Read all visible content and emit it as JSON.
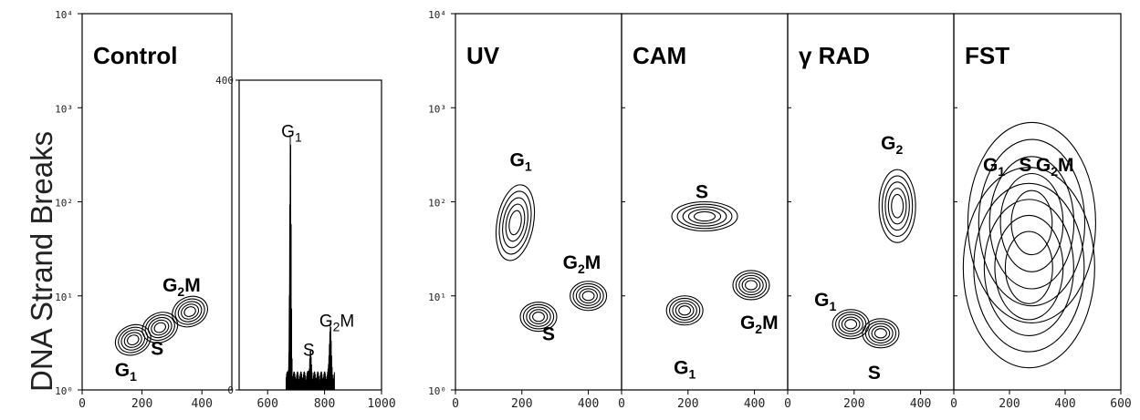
{
  "y_axis_title": "DNA Strand Breaks",
  "colors": {
    "ink": "#000000",
    "axis": "#222222"
  },
  "chart_data": [
    {
      "type": "scatter",
      "panel": "Control",
      "style": "contour",
      "title": "Control",
      "xlim": [
        0,
        500
      ],
      "ylim": [
        1,
        10000
      ],
      "yscale": "log",
      "x_ticks": [
        "0",
        "200",
        "400"
      ],
      "y_ticks": [
        "10⁰",
        "10¹",
        "10²",
        "10³",
        "10⁴"
      ],
      "populations": [
        {
          "name": "G1",
          "x": 170,
          "y": 3.4
        },
        {
          "name": "S",
          "x": 260,
          "y": 4.6
        },
        {
          "name": "G2M",
          "x": 360,
          "y": 6.8
        }
      ]
    },
    {
      "type": "bar",
      "panel": "DNA content histogram",
      "title": "",
      "xlim": [
        500,
        1000
      ],
      "ylim": [
        0,
        400
      ],
      "x_ticks": [
        "600",
        "800",
        "1000"
      ],
      "y_ticks": [
        "0",
        "400"
      ],
      "peaks": [
        {
          "name": "G1",
          "x": 680,
          "y": 315
        },
        {
          "name": "S",
          "x": 750,
          "y": 30
        },
        {
          "name": "G2M",
          "x": 820,
          "y": 70
        }
      ]
    },
    {
      "type": "scatter",
      "panel": "UV",
      "style": "contour",
      "title": "UV",
      "xlim": [
        0,
        500
      ],
      "ylim": [
        1,
        10000
      ],
      "yscale": "log",
      "x_ticks": [
        "0",
        "200",
        "400"
      ],
      "y_ticks": [
        "10⁰",
        "10¹",
        "10²",
        "10³",
        "10⁴"
      ],
      "populations": [
        {
          "name": "G1",
          "x": 180,
          "y": 60
        },
        {
          "name": "S",
          "x": 250,
          "y": 6
        },
        {
          "name": "G2M",
          "x": 400,
          "y": 10
        }
      ]
    },
    {
      "type": "scatter",
      "panel": "CAM",
      "style": "contour",
      "title": "CAM",
      "xlim": [
        0,
        500
      ],
      "ylim": [
        1,
        10000
      ],
      "yscale": "log",
      "x_ticks": [
        "0",
        "200",
        "400"
      ],
      "populations": [
        {
          "name": "S",
          "x": 250,
          "y": 70
        },
        {
          "name": "G1",
          "x": 190,
          "y": 7
        },
        {
          "name": "G2M",
          "x": 390,
          "y": 13
        }
      ]
    },
    {
      "type": "scatter",
      "panel": "γ RAD",
      "style": "contour",
      "title": "γ RAD",
      "xlim": [
        0,
        500
      ],
      "ylim": [
        1,
        10000
      ],
      "yscale": "log",
      "x_ticks": [
        "0",
        "200",
        "400"
      ],
      "populations": [
        {
          "name": "G2",
          "x": 330,
          "y": 90
        },
        {
          "name": "G1",
          "x": 190,
          "y": 5
        },
        {
          "name": "S",
          "x": 280,
          "y": 4
        }
      ]
    },
    {
      "type": "scatter",
      "panel": "FST",
      "style": "contour",
      "title": "FST",
      "xlim": [
        0,
        600
      ],
      "ylim": [
        1,
        10000
      ],
      "yscale": "log",
      "x_ticks": [
        "0",
        "200",
        "400",
        "600"
      ],
      "populations": [
        {
          "name": "G1",
          "x": 190,
          "y": 30
        },
        {
          "name": "S",
          "x": 280,
          "y": 60
        },
        {
          "name": "G2M",
          "x": 380,
          "y": 60
        }
      ]
    }
  ]
}
